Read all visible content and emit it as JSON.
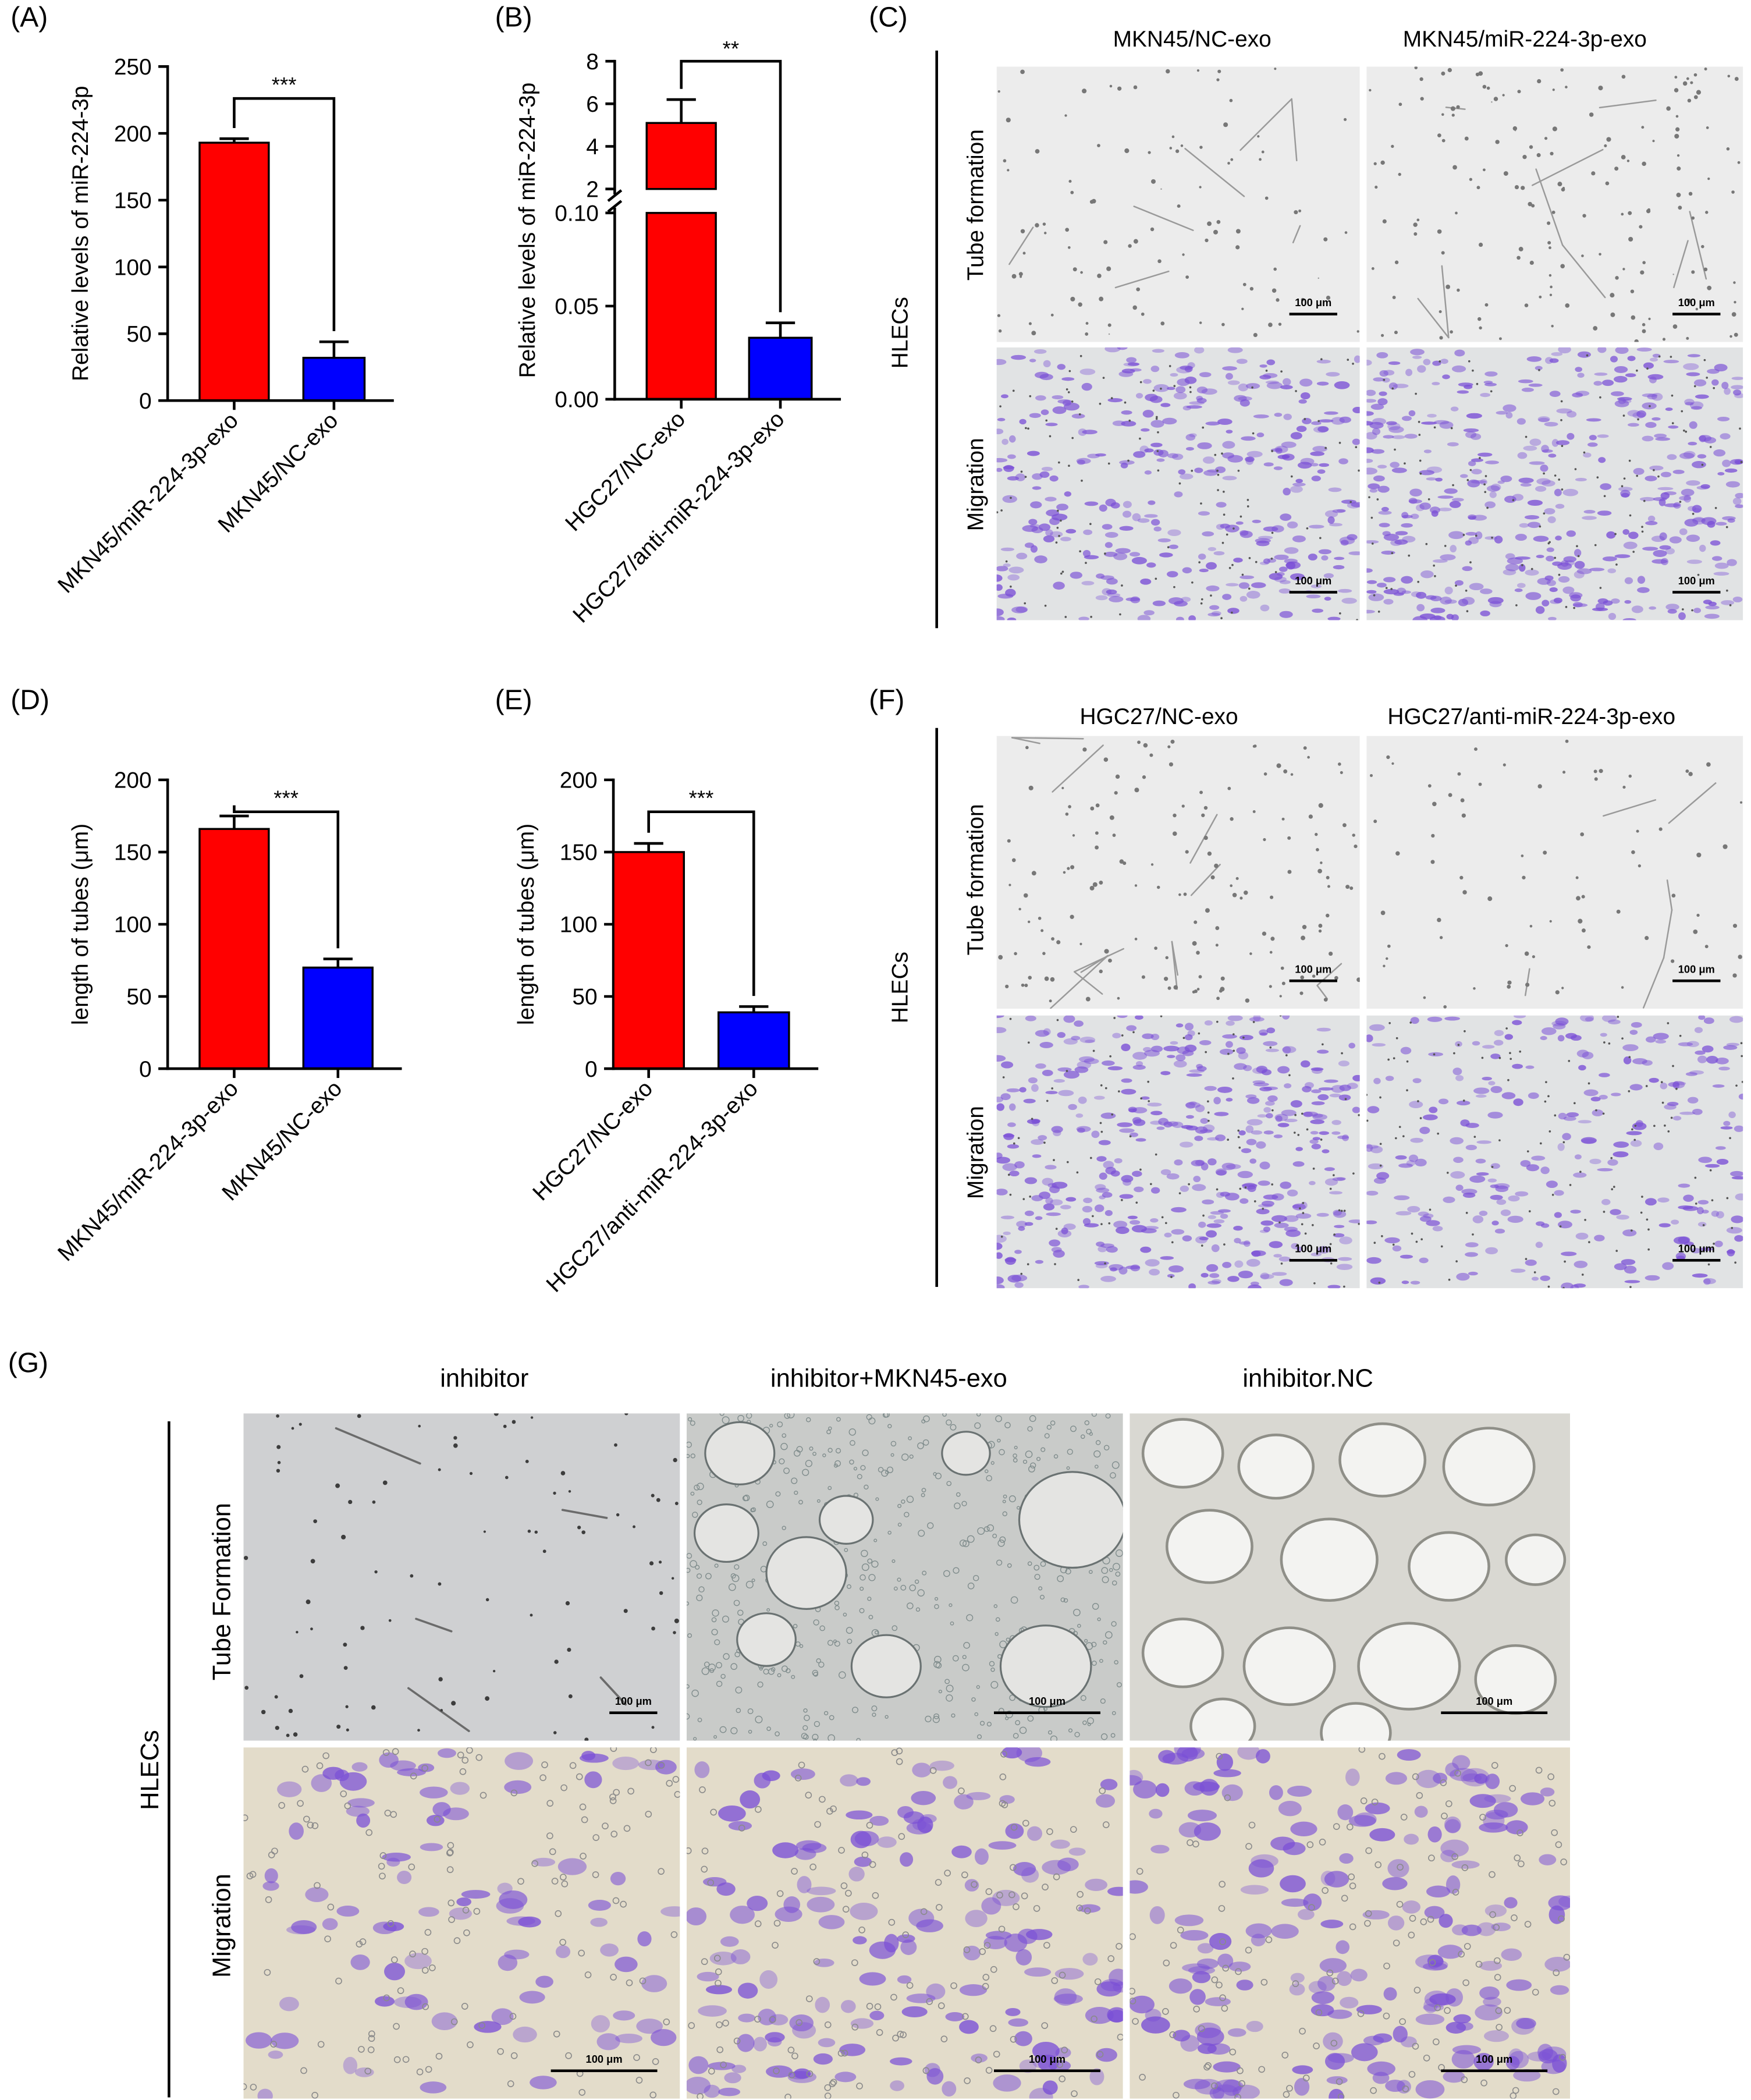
{
  "panels": {
    "A": "(A)",
    "B": "(B)",
    "C": "(C)",
    "D": "(D)",
    "E": "(E)",
    "F": "(F)",
    "G": "(G)"
  },
  "image_panels": {
    "C": {
      "columns": [
        "MKN45/NC-exo",
        "MKN45/miR-224-3p-exo"
      ],
      "rows": [
        "Tube formation",
        "Migration"
      ],
      "cell_label": "HLECs",
      "scale_bar": "100 μm"
    },
    "F": {
      "columns": [
        "HGC27/NC-exo",
        "HGC27/anti-miR-224-3p-exo"
      ],
      "rows": [
        "Tube formation",
        "Migration"
      ],
      "cell_label": "HLECs",
      "scale_bar": "100 μm"
    },
    "G": {
      "columns": [
        "inhibitor",
        "inhibitor+MKN45-exo",
        "inhibitor.NC"
      ],
      "rows": [
        "Tube Formation",
        "Migration"
      ],
      "cell_label": "HLECs",
      "scale_bar": "100 μm"
    }
  },
  "colors": {
    "red": "#ff0000",
    "blue": "#0000ff",
    "tube_bg": "#e9e9e9",
    "migration_bg": "#dfe1e2",
    "stain": "#7a4fd6"
  },
  "chart_data": [
    {
      "id": "A",
      "type": "bar",
      "ylabel": "Relative levels of miR-224-3p",
      "categories": [
        "MKN45/miR-224-3p-exo",
        "MKN45/NC-exo"
      ],
      "values": [
        193,
        32
      ],
      "errors": [
        3,
        12
      ],
      "colors": [
        "#ff0000",
        "#0000ff"
      ],
      "ylim": [
        0,
        250
      ],
      "yticks": [
        0,
        50,
        100,
        150,
        200,
        250
      ],
      "significance": "***"
    },
    {
      "id": "B",
      "type": "bar",
      "ylabel": "Relative levels of miR-224-3p",
      "categories": [
        "HGC27/NC-exo",
        "HGC27/anti-miR-224-3p-exo"
      ],
      "values": [
        5.1,
        0.033
      ],
      "errors": [
        1.1,
        0.008
      ],
      "colors": [
        "#ff0000",
        "#0000ff"
      ],
      "broken_axis": {
        "lower": [
          0,
          0.1
        ],
        "upper": [
          2,
          8
        ]
      },
      "yticks_lower": [
        "0.00",
        "0.05",
        "0.10"
      ],
      "yticks_upper": [
        "2",
        "4",
        "6",
        "8"
      ],
      "significance": "**"
    },
    {
      "id": "D",
      "type": "bar",
      "ylabel": "length of tubes (μm)",
      "categories": [
        "MKN45/miR-224-3p-exo",
        "MKN45/NC-exo"
      ],
      "values": [
        166,
        70
      ],
      "errors": [
        9,
        6
      ],
      "colors": [
        "#ff0000",
        "#0000ff"
      ],
      "ylim": [
        0,
        200
      ],
      "yticks": [
        0,
        50,
        100,
        150,
        200
      ],
      "significance": "***"
    },
    {
      "id": "E",
      "type": "bar",
      "ylabel": "length of tubes (μm)",
      "categories": [
        "HGC27/NC-exo",
        "HGC27/anti-miR-224-3p-exo"
      ],
      "values": [
        150,
        39
      ],
      "errors": [
        6,
        4
      ],
      "colors": [
        "#ff0000",
        "#0000ff"
      ],
      "ylim": [
        0,
        200
      ],
      "yticks": [
        0,
        50,
        100,
        150,
        200
      ],
      "significance": "***"
    }
  ]
}
